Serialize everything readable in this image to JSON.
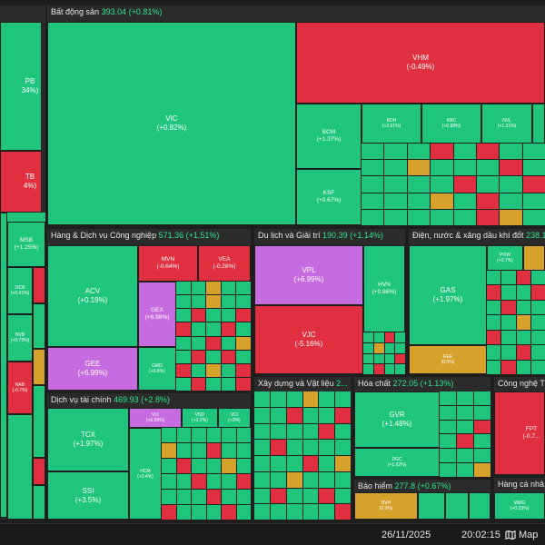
{
  "sections": {
    "bds": {
      "name": "Bất động sản",
      "value": "393.04 (+0.81%)"
    },
    "hdv": {
      "name": "Hàng & Dịch vụ Công nghiệp",
      "value": "571.36 (+1.51%)"
    },
    "dlgt": {
      "name": "Du lịch và Giải trí",
      "value": "190.39 (+1.14%)"
    },
    "dnx": {
      "name": "Điện, nước & xăng dầu khí đốt",
      "value": "238.1..."
    },
    "dvtc": {
      "name": "Dịch vụ tài chính",
      "value": "469.93 (+2.8%)"
    },
    "xdvl": {
      "name": "Xây dựng và Vật liệu",
      "value": "2..."
    },
    "hc": {
      "name": "Hóa chất",
      "value": "272.05 (+1.13%)"
    },
    "cntt": {
      "name": "Công nghệ Th..."
    },
    "bh": {
      "name": "Bảo hiểm",
      "value": "277.8 (+0.67%)"
    },
    "hcn": {
      "name": "Hàng cá nhâ..."
    }
  },
  "tiles": {
    "tpb": {
      "ticker": "PB",
      "pct": "34%)"
    },
    "stb": {
      "ticker": "TB",
      "pct": "4%)"
    },
    "msb": {
      "ticker": "MSB",
      "pct": "(+1.25%)"
    },
    "ocb": {
      "ticker": "OCB",
      "pct": "(+0.41%)"
    },
    "nvb": {
      "ticker": "NVB",
      "pct": "(+0.73%)"
    },
    "nab": {
      "ticker": "NAB",
      "pct": "(-0.7%)"
    },
    "vic": {
      "ticker": "VIC",
      "pct": "(+0.82%)"
    },
    "vhm": {
      "ticker": "VHM",
      "pct": "(-0.49%)"
    },
    "bcm": {
      "ticker": "BCM",
      "pct": "(+1.37%)"
    },
    "ksf": {
      "ticker": "KSF",
      "pct": "(+0.67%)"
    },
    "kdh": {
      "ticker": "KDH",
      "pct": "(+2.61%)"
    },
    "kbc": {
      "ticker": "KBC",
      "pct": "(+0.98%)"
    },
    "nvl": {
      "ticker": "NVL",
      "pct": "(+1.31%)"
    },
    "acv": {
      "ticker": "ACV",
      "pct": "(+0.19%)"
    },
    "mvn": {
      "ticker": "MVN",
      "pct": "(-0.64%)"
    },
    "vea": {
      "ticker": "VEA",
      "pct": "(-0.28%)"
    },
    "gex": {
      "ticker": "GEX",
      "pct": "(+6.98%)"
    },
    "gee": {
      "ticker": "GEE",
      "pct": "(+6.99%)"
    },
    "gmd": {
      "ticker": "GMD",
      "pct": "(+0.8%)"
    },
    "vpl": {
      "ticker": "VPL",
      "pct": "(+6.99%)"
    },
    "vjc": {
      "ticker": "VJC",
      "pct": "(-5.16%)"
    },
    "hvn": {
      "ticker": "HVN",
      "pct": "(+0.86%)"
    },
    "gas": {
      "ticker": "GAS",
      "pct": "(+1.97%)"
    },
    "pow": {
      "ticker": "POW",
      "pct": "(+2.7%)"
    },
    "ree": {
      "ticker": "REE",
      "pct": "(0.0%)"
    },
    "tcx": {
      "ticker": "TCX",
      "pct": "(+1.97%)"
    },
    "ssi": {
      "ticker": "SSI",
      "pct": "(+3.5%)"
    },
    "vix": {
      "ticker": "VIX",
      "pct": "(+6.99%)"
    },
    "vnd": {
      "ticker": "VND",
      "pct": "(+3.2%)"
    },
    "vci": {
      "ticker": "VCI",
      "pct": "(+3%)"
    },
    "hcm": {
      "ticker": "HCM",
      "pct": "(+2.4%)"
    },
    "gvr": {
      "ticker": "GVR",
      "pct": "(+1.48%)"
    },
    "dgc": {
      "ticker": "DGC",
      "pct": "(+1.92%)"
    },
    "fpt": {
      "ticker": "FPT",
      "pct": "(-0.7..."
    },
    "bvh": {
      "ticker": "BVH",
      "pct": "(0.0%)"
    },
    "mwg": {
      "ticker": "MWG",
      "pct": "(+0.23%)"
    }
  },
  "footer": {
    "date": "26/11/2025",
    "time": "20:02:15",
    "map_label": "Map"
  },
  "colors": {
    "up": "#1fc57c",
    "down": "#e0303f",
    "ceiling": "#c76be0",
    "reference": "#d6a22c"
  }
}
